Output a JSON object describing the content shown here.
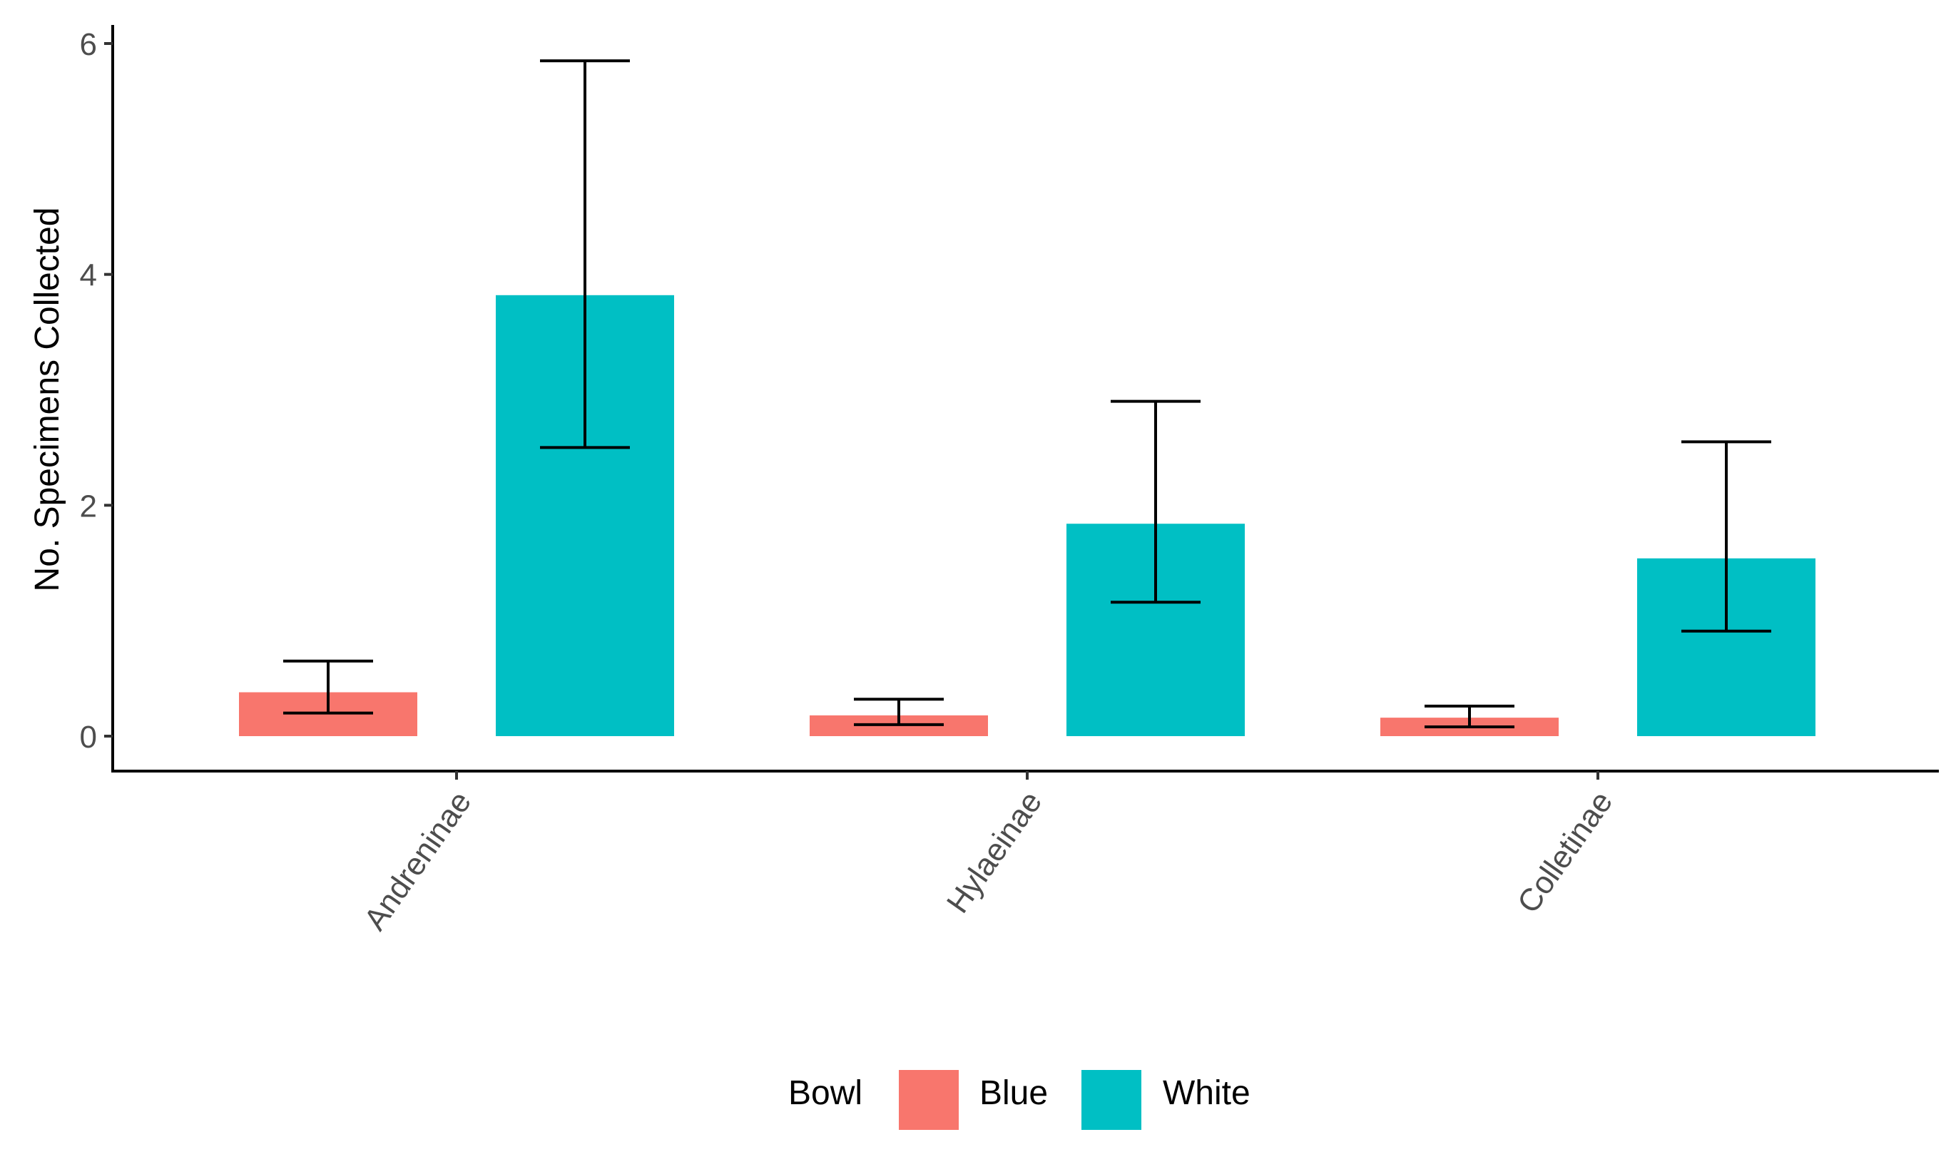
{
  "chart_data": {
    "type": "bar",
    "title": "",
    "xlabel": "",
    "ylabel": "No. Specimens Collected",
    "categories": [
      "Andreninae",
      "Hylaeinae",
      "Colletinae"
    ],
    "series": [
      {
        "name": "Blue",
        "color": "#F8766D",
        "values": [
          0.38,
          0.18,
          0.16
        ],
        "error_low": [
          0.2,
          0.1,
          0.08
        ],
        "error_high": [
          0.65,
          0.32,
          0.26
        ]
      },
      {
        "name": "White",
        "color": "#00BFC4",
        "values": [
          3.82,
          1.84,
          1.54
        ],
        "error_low": [
          2.5,
          1.16,
          0.91
        ],
        "error_high": [
          5.85,
          2.9,
          2.55
        ]
      }
    ],
    "yticks": [
      "0",
      "2",
      "4",
      "6"
    ],
    "ylim": [
      -0.3,
      6.15
    ],
    "grid": false,
    "legend": {
      "title": "Bowl",
      "position": "bottom",
      "labels": [
        "Blue",
        "White"
      ]
    }
  }
}
